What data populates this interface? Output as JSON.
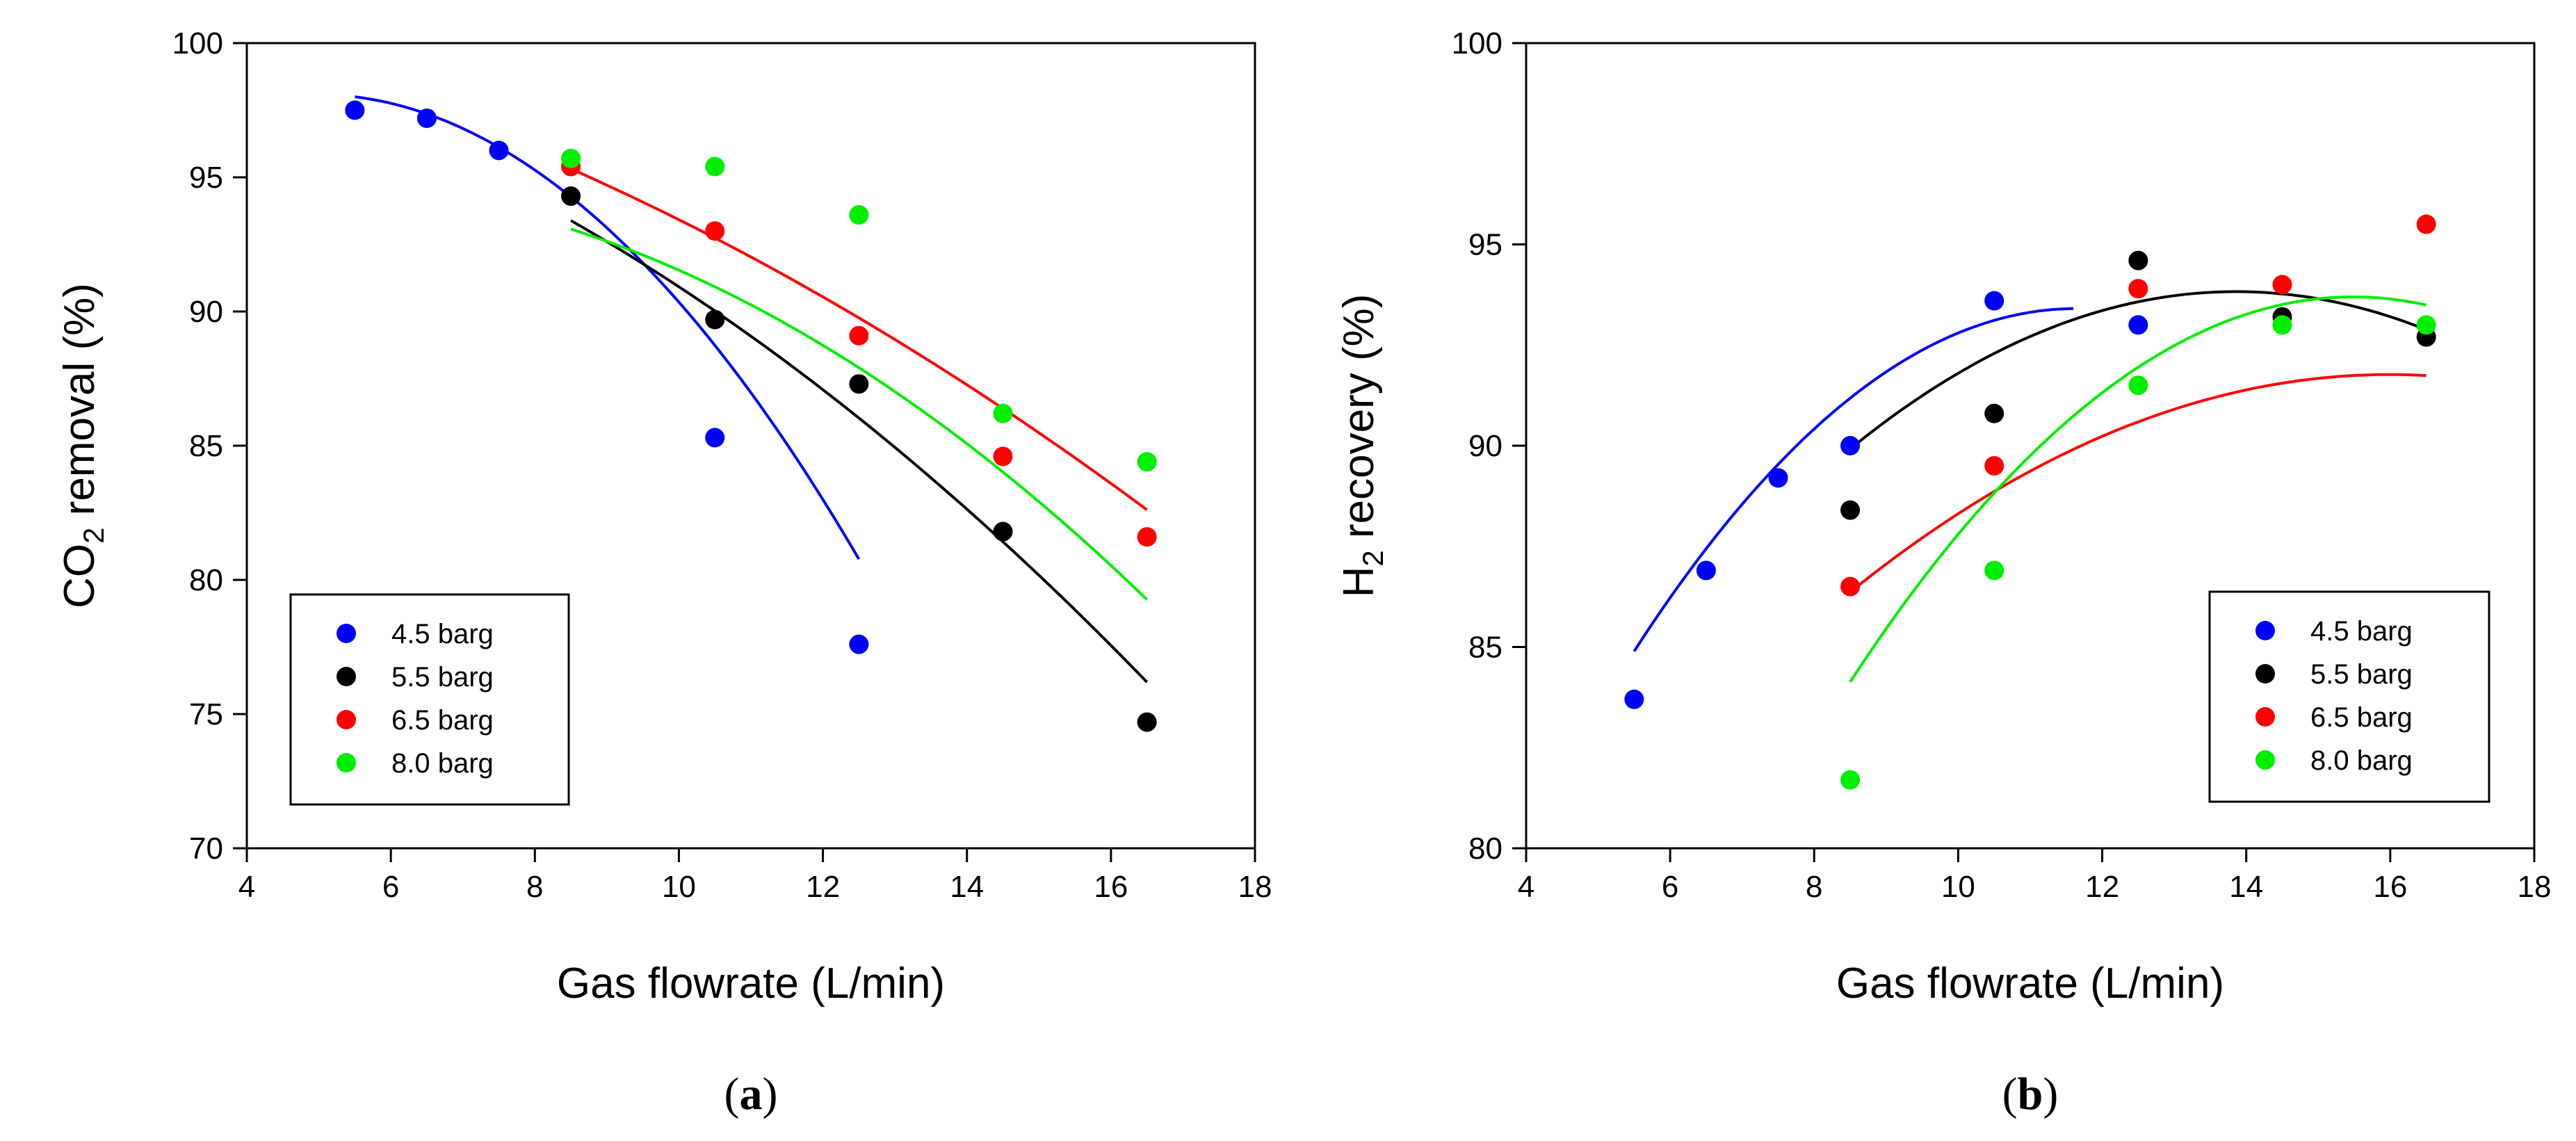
{
  "chart_data": [
    {
      "type": "scatter",
      "panel_label": "a",
      "xlabel": "Gas flowrate (L/min)",
      "ylabel": {
        "pre": "CO",
        "sub": "2",
        "post": " removal (%)"
      },
      "xlim": [
        4,
        18
      ],
      "ylim": [
        70,
        100
      ],
      "xticks": [
        4,
        6,
        8,
        10,
        12,
        14,
        16,
        18
      ],
      "yticks": [
        70,
        75,
        80,
        85,
        90,
        95,
        100
      ],
      "grid": false,
      "legend_position": "bottom-left",
      "series": [
        {
          "name": "4.5 barg",
          "color": "#0000ff",
          "x": [
            5.5,
            6.5,
            7.5,
            10.5,
            12.5
          ],
          "y": [
            97.5,
            97.2,
            96.0,
            85.3,
            77.6
          ],
          "fit": {
            "x": [
              5.5,
              12.5
            ],
            "coef": [
              90.6,
              3.02,
              -0.3045
            ]
          }
        },
        {
          "name": "5.5 barg",
          "color": "#000000",
          "x": [
            8.5,
            10.5,
            12.5,
            14.5,
            16.5
          ],
          "y": [
            94.3,
            89.7,
            87.3,
            81.8,
            74.7
          ],
          "fit": {
            "x": [
              8.5,
              16.5
            ],
            "coef": [
              100.79,
              -0.212,
              -0.0775
            ]
          }
        },
        {
          "name": "6.5 barg",
          "color": "#ff0000",
          "x": [
            8.5,
            10.5,
            12.5,
            14.5,
            16.5
          ],
          "y": [
            95.4,
            93.0,
            89.1,
            84.6,
            81.6
          ],
          "fit": {
            "x": [
              8.5,
              16.5
            ],
            "coef": [
              101.8,
              -0.338,
              -0.05
            ]
          }
        },
        {
          "name": "8.0 barg",
          "color": "#00ee00",
          "x": [
            8.5,
            10.5,
            12.5,
            14.5,
            16.5
          ],
          "y": [
            95.7,
            95.4,
            93.6,
            86.2,
            84.4
          ],
          "fit": {
            "x": [
              8.5,
              16.5
            ],
            "coef": [
              92.52,
              0.987,
              -0.1085
            ]
          }
        }
      ]
    },
    {
      "type": "scatter",
      "panel_label": "b",
      "xlabel": "Gas flowrate (L/min)",
      "ylabel": {
        "pre": "H",
        "sub": "2",
        "post": " recovery (%)"
      },
      "xlim": [
        4,
        18
      ],
      "ylim": [
        80,
        100
      ],
      "xticks": [
        4,
        6,
        8,
        10,
        12,
        14,
        16,
        18
      ],
      "yticks": [
        80,
        85,
        90,
        95,
        100
      ],
      "grid": false,
      "legend_position": "bottom-right",
      "series": [
        {
          "name": "4.5 barg",
          "color": "#0000ff",
          "x": [
            5.5,
            6.5,
            7.5,
            8.5,
            10.5,
            12.5
          ],
          "y": [
            83.7,
            86.9,
            89.2,
            90.0,
            93.6,
            93.0
          ],
          "fit": {
            "x": [
              5.5,
              11.6
            ],
            "coef": [
              62.8,
              5.26,
              -0.226
            ]
          }
        },
        {
          "name": "5.5 barg",
          "color": "#000000",
          "x": [
            8.5,
            10.5,
            12.5,
            14.5,
            16.5
          ],
          "y": [
            88.4,
            90.8,
            94.6,
            93.2,
            92.7
          ],
          "fit": {
            "x": [
              8.5,
              16.5
            ],
            "coef": [
              67.7,
              3.77,
              -0.136
            ]
          }
        },
        {
          "name": "6.5 barg",
          "color": "#ff0000",
          "x": [
            8.5,
            10.5,
            12.5,
            14.5,
            16.5
          ],
          "y": [
            86.5,
            89.5,
            93.9,
            94.0,
            95.5
          ],
          "fit": {
            "x": [
              8.5,
              16.5
            ],
            "coef": [
              67.14,
              3.08,
              -0.0963
            ]
          }
        },
        {
          "name": "8.0 barg",
          "color": "#00ee00",
          "x": [
            8.5,
            10.5,
            12.5,
            14.5,
            16.5
          ],
          "y": [
            81.7,
            86.9,
            91.5,
            93.0,
            93.0
          ],
          "fit": {
            "x": [
              8.5,
              16.5
            ],
            "coef": [
              46.7,
              6.07,
              -0.196
            ]
          }
        }
      ]
    }
  ]
}
